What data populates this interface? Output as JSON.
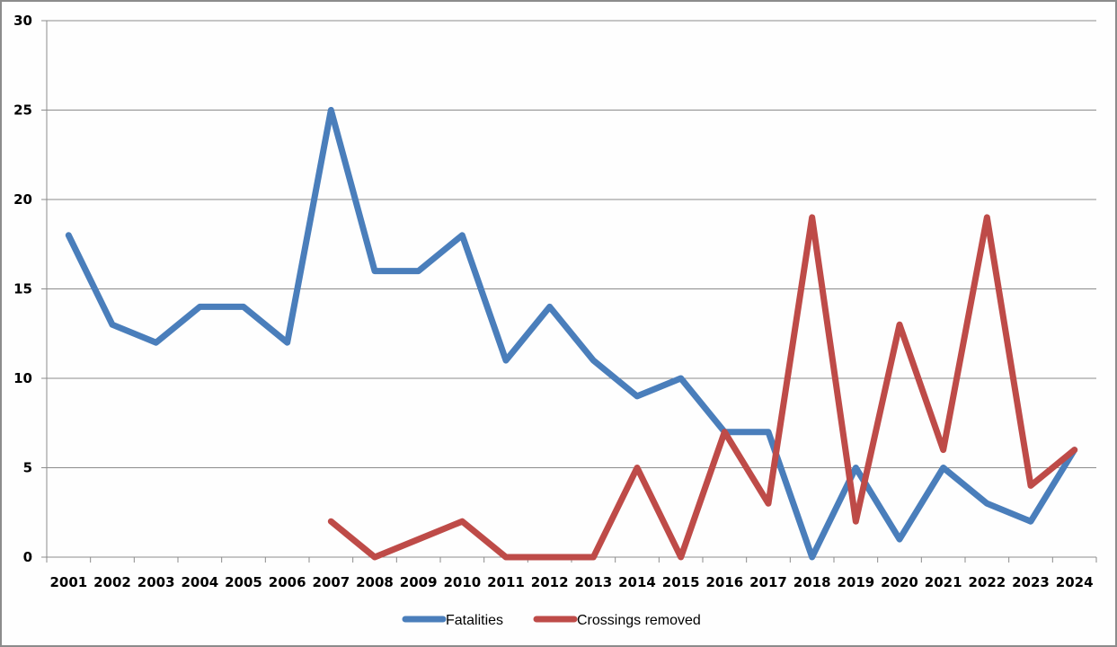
{
  "chart_data": {
    "type": "line",
    "title": "",
    "xlabel": "",
    "ylabel": "",
    "ylim": [
      0,
      30
    ],
    "yticks": [
      0,
      5,
      10,
      15,
      20,
      25,
      30
    ],
    "grid": true,
    "legend_position": "bottom",
    "categories": [
      "2001",
      "2002",
      "2003",
      "2004",
      "2005",
      "2006",
      "2007",
      "2008",
      "2009",
      "2010",
      "2011",
      "2012",
      "2013",
      "2014",
      "2015",
      "2016",
      "2017",
      "2018",
      "2019",
      "2020",
      "2021",
      "2022",
      "2023",
      "2024"
    ],
    "series": [
      {
        "name": "Fatalities",
        "color": "#4a7ebb",
        "values": [
          18,
          13,
          12,
          14,
          14,
          12,
          25,
          16,
          16,
          18,
          11,
          14,
          11,
          9,
          10,
          7,
          7,
          0,
          5,
          1,
          5,
          3,
          2,
          6
        ]
      },
      {
        "name": "Crossings removed",
        "color": "#be4b48",
        "values": [
          null,
          null,
          null,
          null,
          null,
          null,
          2,
          0,
          1,
          2,
          0,
          0,
          0,
          5,
          0,
          7,
          3,
          19,
          2,
          13,
          6,
          19,
          4,
          6
        ]
      }
    ]
  },
  "legend": {
    "items": [
      {
        "label": "Fatalities",
        "color": "#4a7ebb"
      },
      {
        "label": "Crossings removed",
        "color": "#be4b48"
      }
    ]
  }
}
